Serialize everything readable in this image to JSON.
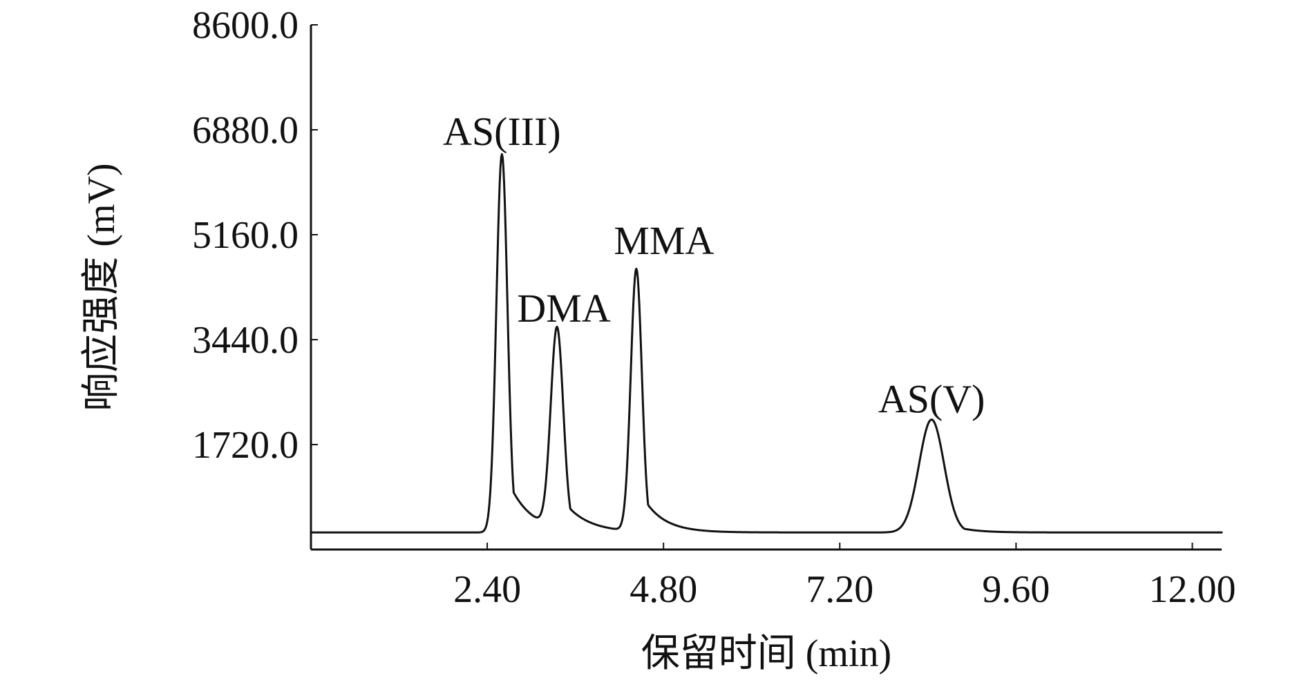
{
  "chart_data": {
    "type": "line",
    "title": "",
    "xlabel": "保留时间 (min)",
    "ylabel": "响应强度 (mV)",
    "xlim": [
      0.0,
      12.4
    ],
    "ylim": [
      0.0,
      8600.0
    ],
    "x_ticks": [
      2.4,
      4.8,
      7.2,
      9.6,
      12.0
    ],
    "x_tick_labels": [
      "2.40",
      "4.80",
      "7.20",
      "9.60",
      "12.00"
    ],
    "y_ticks": [
      1720.0,
      3440.0,
      5160.0,
      6880.0,
      8600.0
    ],
    "y_tick_labels": [
      "1720.0",
      "3440.0",
      "5160.0",
      "6880.0",
      "8600.0"
    ],
    "grid": false,
    "legend": "none",
    "series_color": "#111111",
    "baseline": 280,
    "series": [
      {
        "peaks": [
          {
            "label": "AS(III)",
            "x": 2.6,
            "y": 6200,
            "width": 0.075,
            "tail": 0.3
          },
          {
            "label": "DMA",
            "x": 3.35,
            "y": 3280,
            "width": 0.085,
            "tail": 0.32
          },
          {
            "label": "MMA",
            "x": 4.43,
            "y": 4300,
            "width": 0.075,
            "tail": 0.28
          },
          {
            "label": "AS(V)",
            "x": 8.45,
            "y": 1850,
            "width": 0.17,
            "tail": 0.26
          }
        ]
      }
    ]
  }
}
